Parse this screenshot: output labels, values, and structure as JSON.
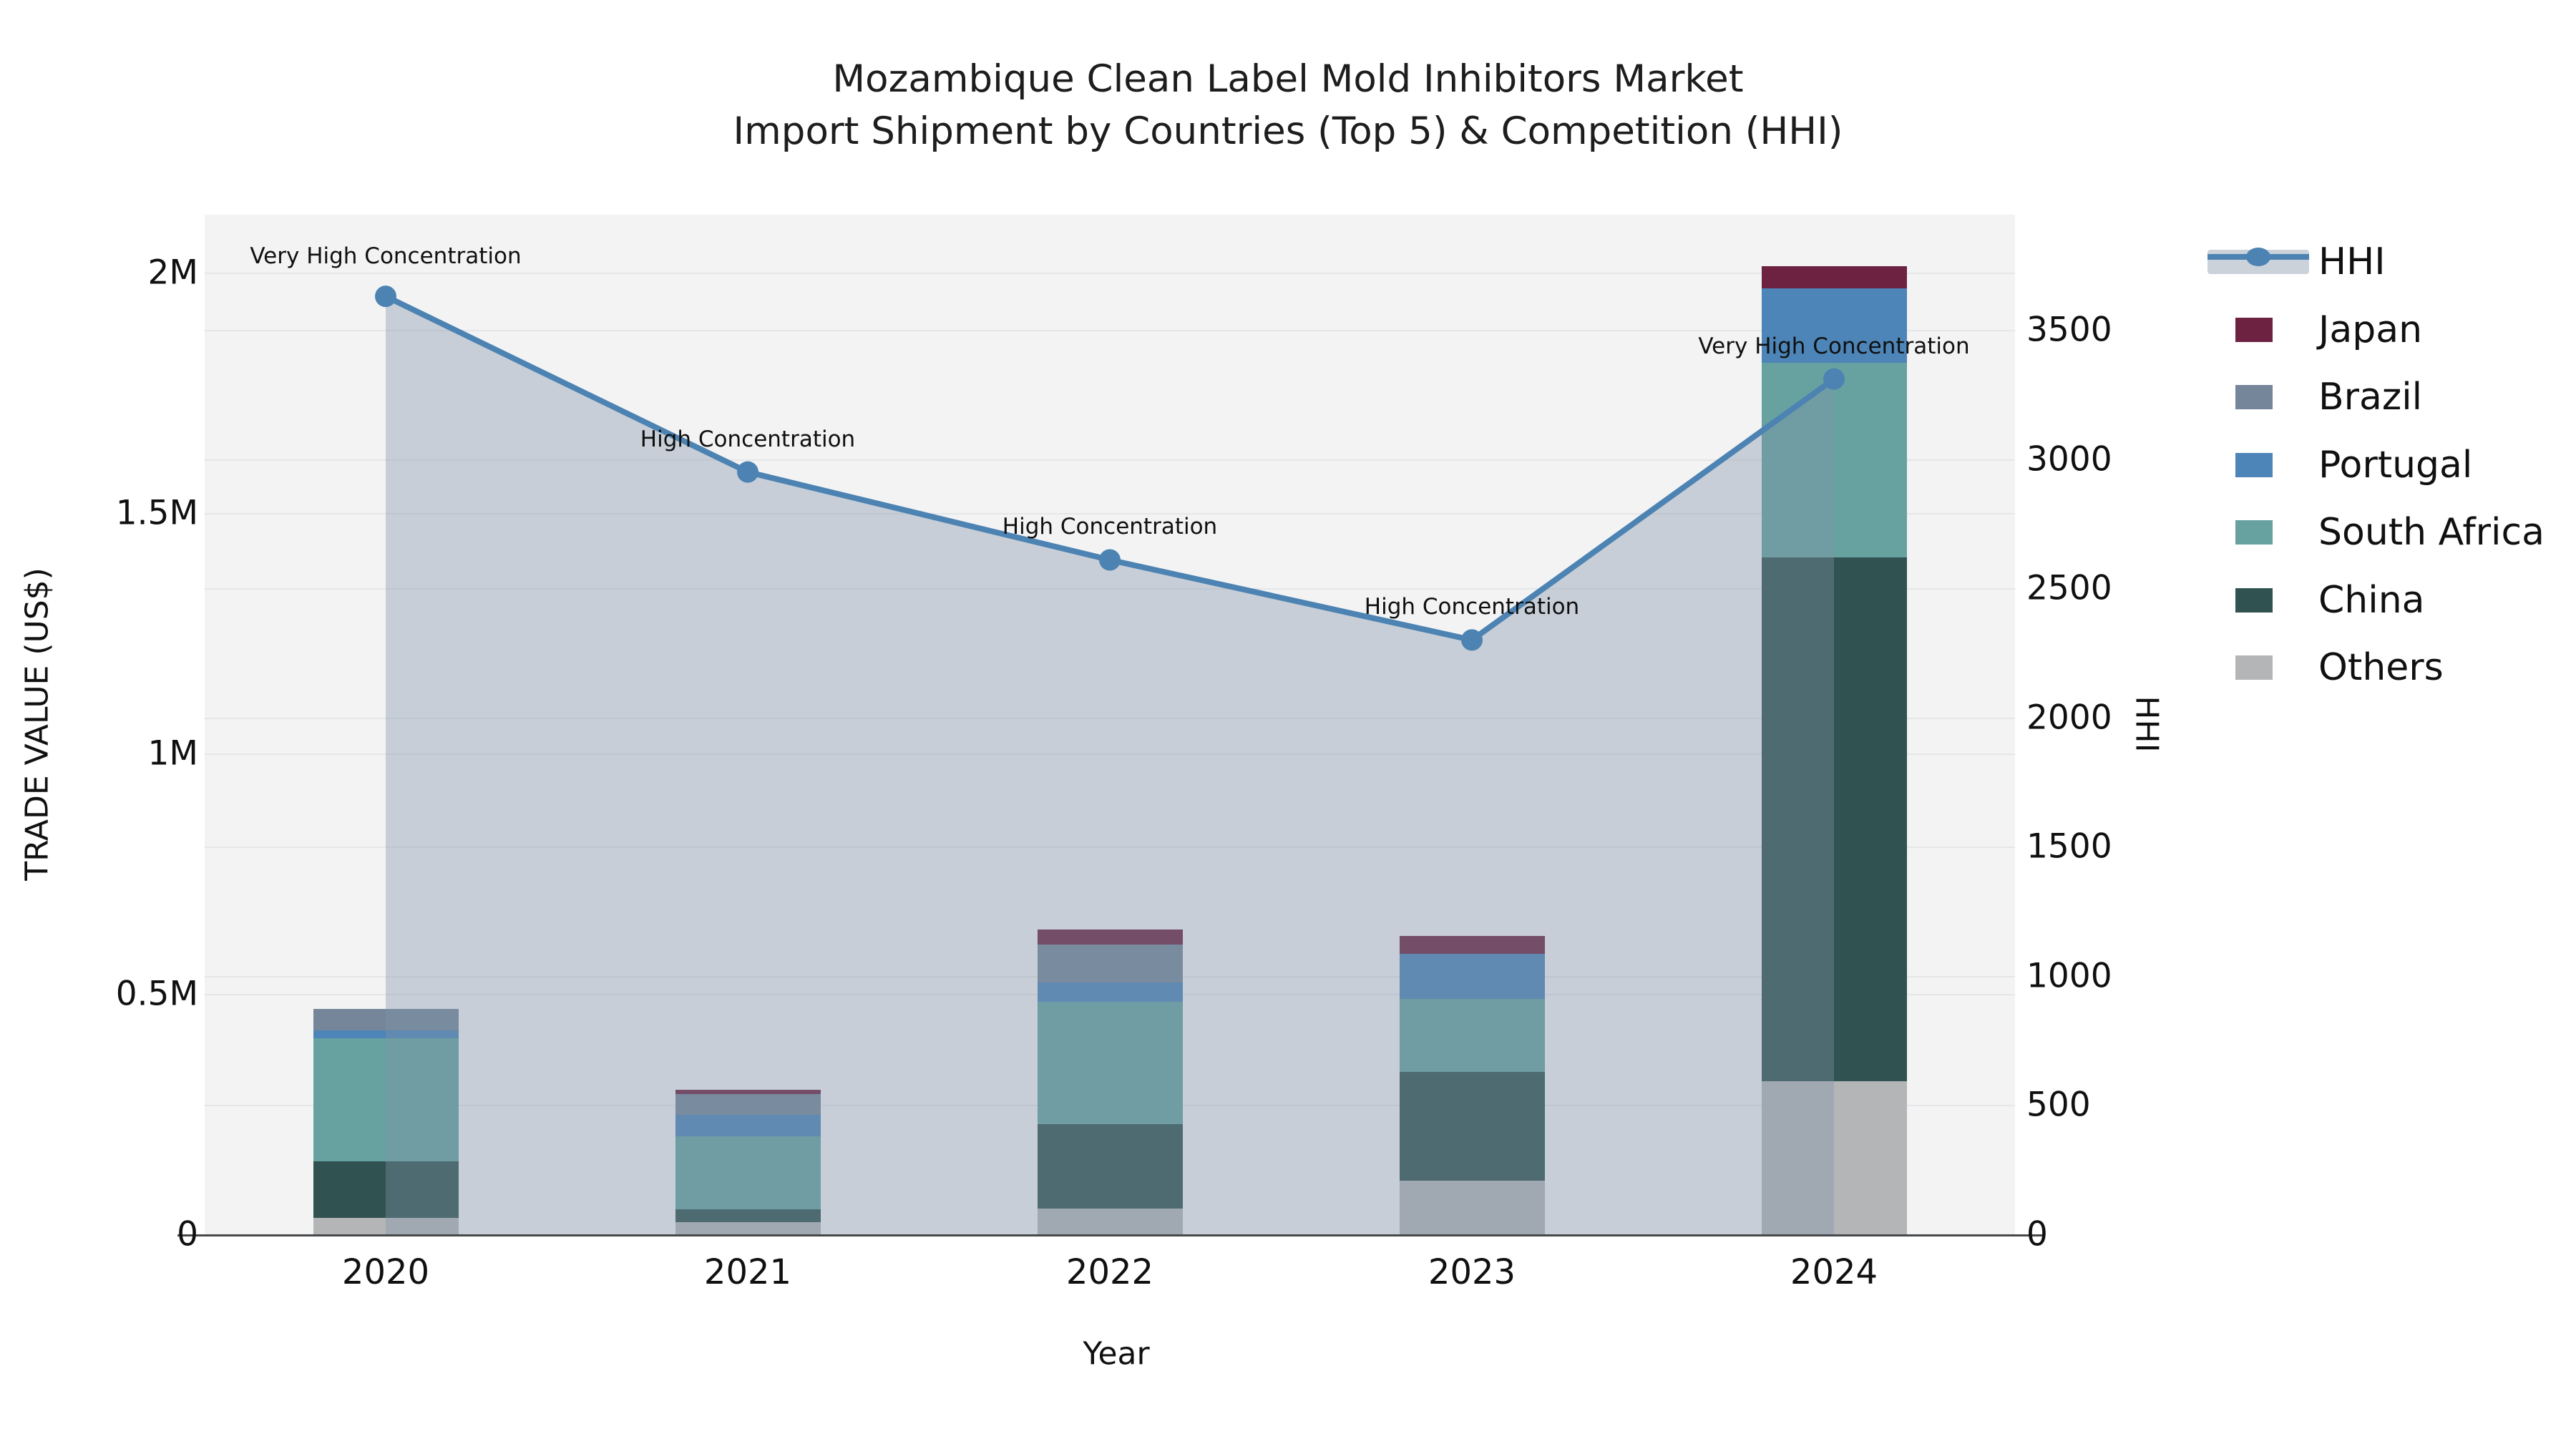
{
  "title": {
    "line1": "Mozambique Clean Label Mold Inhibitors Market",
    "line2": "Import Shipment by Countries (Top 5) & Competition (HHI)"
  },
  "axes": {
    "x": {
      "title": "Year",
      "categories": [
        "2020",
        "2021",
        "2022",
        "2023",
        "2024"
      ]
    },
    "y_left": {
      "title": "TRADE VALUE (US$)",
      "tick_labels": [
        "0",
        "0.5M",
        "1M",
        "1.5M",
        "2M"
      ],
      "tick_values_k": [
        0,
        500,
        1000,
        1500,
        2000
      ],
      "max_k": 2120.5
    },
    "y_right": {
      "title": "HHI",
      "tick_labels": [
        "0",
        "500",
        "1000",
        "1500",
        "2000",
        "2500",
        "3000",
        "3500"
      ],
      "tick_values": [
        0,
        500,
        1000,
        1500,
        2000,
        2500,
        3000,
        3500
      ],
      "max": 3946
    }
  },
  "legend": {
    "items": [
      {
        "label": "HHI",
        "type": "line",
        "color": "#4c83b2"
      },
      {
        "label": "Japan",
        "type": "swatch",
        "color": "#6d2242"
      },
      {
        "label": "Brazil",
        "type": "swatch",
        "color": "#75869a"
      },
      {
        "label": "Portugal",
        "type": "swatch",
        "color": "#4d85b8"
      },
      {
        "label": "South Africa",
        "type": "swatch",
        "color": "#67a2a1"
      },
      {
        "label": "China",
        "type": "swatch",
        "color": "#305351"
      },
      {
        "label": "Others",
        "type": "swatch",
        "color": "#b3b5b6"
      }
    ]
  },
  "chart_data": {
    "type": "bar+line",
    "categories": [
      "2020",
      "2021",
      "2022",
      "2023",
      "2024"
    ],
    "bar_unit": "US$",
    "stack_order_bottom_to_top": [
      "Others",
      "China",
      "South Africa",
      "Portugal",
      "Brazil",
      "Japan"
    ],
    "series": [
      {
        "name": "Others",
        "color": "#b3b5b6",
        "values_usd": [
          34000,
          25000,
          53000,
          111000,
          318000
        ]
      },
      {
        "name": "China",
        "color": "#305351",
        "values_usd": [
          118000,
          27000,
          176000,
          227000,
          1090000
        ]
      },
      {
        "name": "South Africa",
        "color": "#67a2a1",
        "values_usd": [
          255000,
          152000,
          255000,
          152000,
          405000
        ]
      },
      {
        "name": "Portugal",
        "color": "#4d85b8",
        "values_usd": [
          17000,
          45000,
          40000,
          94000,
          154000
        ]
      },
      {
        "name": "Brazil",
        "color": "#75869a",
        "values_usd": [
          44000,
          42000,
          79000,
          0,
          0
        ]
      },
      {
        "name": "Japan",
        "color": "#6d2242",
        "values_usd": [
          0,
          10000,
          31000,
          36000,
          47000
        ]
      }
    ],
    "totals_usd": [
      468000,
      301000,
      634000,
      620000,
      2014000
    ],
    "hhi": {
      "name": "HHI",
      "values": [
        3630,
        2950,
        2610,
        2300,
        3310
      ]
    },
    "annotations": [
      {
        "x": "2020",
        "text": "Very High Concentration",
        "dy": -56
      },
      {
        "x": "2021",
        "text": "High Concentration",
        "dy": -46
      },
      {
        "x": "2022",
        "text": "High Concentration",
        "dy": -46
      },
      {
        "x": "2023",
        "text": "High Concentration",
        "dy": -46
      },
      {
        "x": "2024",
        "text": "Very High Concentration",
        "dy": -46
      }
    ],
    "legend_position": "right",
    "grid": true
  },
  "colors": {
    "hhi_line": "#4c83b2",
    "hhi_area_fill": "rgba(130,146,168,0.38)",
    "plot_bg": "#f3f3f4",
    "gridline": "#e4e6e7",
    "axis_line": "#47494b",
    "text": "#101010"
  }
}
